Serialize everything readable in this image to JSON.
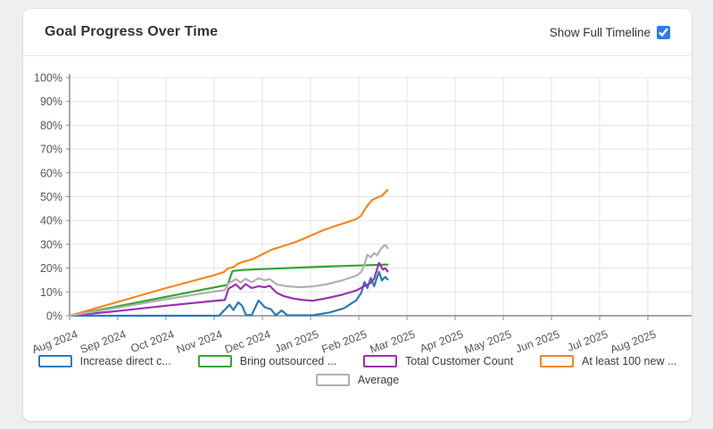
{
  "header": {
    "title": "Goal Progress Over Time",
    "toggle_label": "Show Full Timeline",
    "toggle_checked": true,
    "accent_color": "#2b7cea"
  },
  "chart_data": {
    "type": "line",
    "title": "Goal Progress Over Time",
    "x_axis": {
      "labels": [
        "Aug 2024",
        "Sep 2024",
        "Oct 2024",
        "Nov 2024",
        "Dec 2024",
        "Jan 2025",
        "Feb 2025",
        "Mar 2025",
        "Apr 2025",
        "May 2025",
        "Jun 2025",
        "Jul 2025",
        "Aug 2025"
      ],
      "unit": "month_index_from_Aug_2024"
    },
    "y_axis": {
      "min": 0,
      "max": 100,
      "step": 10,
      "format": "percent"
    },
    "grid": true,
    "legend_position": "bottom",
    "axis_color": "#8a8a8a",
    "grid_color": "#e3e3e5",
    "label_color": "#555555",
    "series": [
      {
        "name": "Increase direct c...",
        "color": "#2a7ab9",
        "points": [
          [
            0,
            0
          ],
          [
            3.1,
            0
          ],
          [
            3.22,
            2.5
          ],
          [
            3.32,
            4.6
          ],
          [
            3.4,
            2.4
          ],
          [
            3.5,
            5.6
          ],
          [
            3.58,
            4.2
          ],
          [
            3.66,
            0.3
          ],
          [
            3.78,
            0.3
          ],
          [
            3.92,
            6.4
          ],
          [
            4.05,
            3.6
          ],
          [
            4.18,
            2.7
          ],
          [
            4.28,
            0.2
          ],
          [
            4.4,
            2.2
          ],
          [
            4.52,
            0.2
          ],
          [
            5.05,
            0.2
          ],
          [
            5.4,
            1.4
          ],
          [
            5.7,
            3.2
          ],
          [
            5.95,
            6.5
          ],
          [
            6.05,
            9.5
          ],
          [
            6.12,
            14.2
          ],
          [
            6.18,
            11.6
          ],
          [
            6.25,
            15.9
          ],
          [
            6.32,
            12.4
          ],
          [
            6.42,
            18.5
          ],
          [
            6.48,
            14.8
          ],
          [
            6.55,
            16.3
          ],
          [
            6.6,
            15.2
          ]
        ]
      },
      {
        "name": "Bring outsourced ...",
        "color": "#33a532",
        "points": [
          [
            0,
            0
          ],
          [
            3.28,
            13
          ],
          [
            3.38,
            18.8
          ],
          [
            3.6,
            19.2
          ],
          [
            4,
            19.6
          ],
          [
            4.5,
            20
          ],
          [
            5,
            20.4
          ],
          [
            5.5,
            20.8
          ],
          [
            6,
            21.1
          ],
          [
            6.6,
            21.5
          ]
        ]
      },
      {
        "name": "Total Customer Count",
        "color": "#9c31ad",
        "points": [
          [
            0,
            0
          ],
          [
            1,
            2
          ],
          [
            2,
            4.2
          ],
          [
            3,
            6.2
          ],
          [
            3.22,
            6.6
          ],
          [
            3.3,
            11.4
          ],
          [
            3.45,
            13.2
          ],
          [
            3.55,
            11.2
          ],
          [
            3.65,
            13.3
          ],
          [
            3.78,
            11.6
          ],
          [
            3.92,
            12.4
          ],
          [
            4.05,
            12
          ],
          [
            4.15,
            12.6
          ],
          [
            4.3,
            9.6
          ],
          [
            4.45,
            8.2
          ],
          [
            4.65,
            7.2
          ],
          [
            4.85,
            6.6
          ],
          [
            5.05,
            6.3
          ],
          [
            5.35,
            7.4
          ],
          [
            5.65,
            8.8
          ],
          [
            5.95,
            10.6
          ],
          [
            6.1,
            12.2
          ],
          [
            6.25,
            13.8
          ],
          [
            6.32,
            15.5
          ],
          [
            6.42,
            22.2
          ],
          [
            6.5,
            19.4
          ],
          [
            6.55,
            20
          ],
          [
            6.6,
            18.6
          ]
        ]
      },
      {
        "name": "At least 100 new ...",
        "color": "#f6861f",
        "points": [
          [
            0,
            0
          ],
          [
            1,
            5.8
          ],
          [
            2,
            11.6
          ],
          [
            3,
            17
          ],
          [
            3.2,
            18.3
          ],
          [
            3.28,
            19.8
          ],
          [
            3.4,
            20.4
          ],
          [
            3.48,
            21.6
          ],
          [
            3.56,
            22.4
          ],
          [
            3.8,
            23.8
          ],
          [
            4,
            25.8
          ],
          [
            4.2,
            27.8
          ],
          [
            4.45,
            29.4
          ],
          [
            4.7,
            31
          ],
          [
            5,
            33.6
          ],
          [
            5.25,
            35.8
          ],
          [
            5.5,
            37.6
          ],
          [
            5.75,
            39.2
          ],
          [
            5.95,
            40.6
          ],
          [
            6.05,
            42
          ],
          [
            6.12,
            44.5
          ],
          [
            6.18,
            46.2
          ],
          [
            6.28,
            48.6
          ],
          [
            6.38,
            49.6
          ],
          [
            6.48,
            50.4
          ],
          [
            6.55,
            51.8
          ],
          [
            6.6,
            52.8
          ]
        ]
      },
      {
        "name": "Average",
        "color": "#b0b0b0",
        "points": [
          [
            0,
            0
          ],
          [
            1,
            3.4
          ],
          [
            2,
            6.9
          ],
          [
            3,
            10.2
          ],
          [
            3.22,
            10.8
          ],
          [
            3.3,
            13.6
          ],
          [
            3.45,
            15.4
          ],
          [
            3.55,
            13.9
          ],
          [
            3.65,
            15.5
          ],
          [
            3.78,
            14.1
          ],
          [
            3.92,
            15.7
          ],
          [
            4.05,
            14.9
          ],
          [
            4.15,
            15.4
          ],
          [
            4.3,
            13.2
          ],
          [
            4.5,
            12.4
          ],
          [
            4.75,
            12
          ],
          [
            5.05,
            12.3
          ],
          [
            5.35,
            13.3
          ],
          [
            5.65,
            14.8
          ],
          [
            5.95,
            16.8
          ],
          [
            6.05,
            18.3
          ],
          [
            6.12,
            21.5
          ],
          [
            6.18,
            25.6
          ],
          [
            6.25,
            24.6
          ],
          [
            6.32,
            26.2
          ],
          [
            6.38,
            25.4
          ],
          [
            6.45,
            27.8
          ],
          [
            6.52,
            29.4
          ],
          [
            6.56,
            29.6
          ],
          [
            6.6,
            28.4
          ]
        ]
      }
    ]
  },
  "legend": {
    "row1_indices": [
      0,
      1,
      2,
      3
    ],
    "row2_indices": [
      4
    ]
  }
}
